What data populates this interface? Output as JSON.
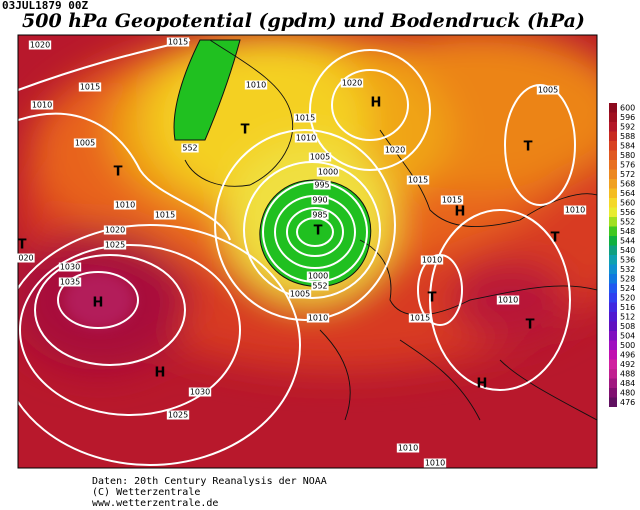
{
  "header": {
    "timestamp": "03JUL1879 00Z",
    "title": "500 hPa Geopotential (gpdm) und Bodendruck (hPa)"
  },
  "colorbar": {
    "levels": [
      600,
      596,
      592,
      588,
      584,
      580,
      576,
      572,
      568,
      564,
      560,
      556,
      552,
      548,
      544,
      540,
      536,
      532,
      528,
      524,
      520,
      516,
      512,
      508,
      504,
      500,
      496,
      492,
      488,
      484,
      480,
      476
    ]
  },
  "isobar_labels": [
    "1020",
    "1015",
    "1010",
    "1015",
    "1005",
    "1010",
    "1015",
    "1020",
    "1025",
    "1030",
    "1035",
    "1010",
    "1015",
    "1010",
    "1005",
    "1000",
    "995",
    "990",
    "985",
    "1000",
    "1005",
    "1010",
    "1020",
    "1020",
    "1015",
    "1015",
    "1010",
    "1005",
    "1015",
    "1010",
    "1010",
    "1010",
    "1030",
    "1025",
    "1010",
    "020",
    "552",
    "552"
  ],
  "centers": [
    "H",
    "T",
    "T",
    "H",
    "T",
    "T",
    "H",
    "H",
    "T",
    "T",
    "H",
    "T",
    "T"
  ],
  "footer": {
    "lines": [
      "Daten: 20th Century Reanalysis der NOAA",
      "(C) Wetterzentrale",
      "www.wetterzentrale.de"
    ]
  }
}
